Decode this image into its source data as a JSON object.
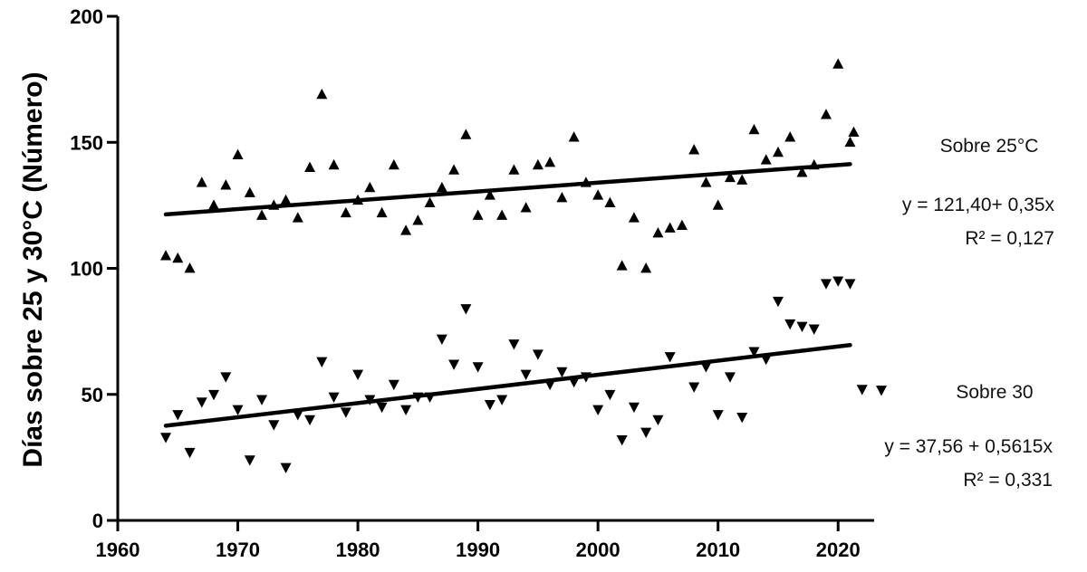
{
  "chart_data": {
    "type": "scatter",
    "title": "",
    "xlabel": "",
    "ylabel": "Días sobre 25 y 30°C (Número)",
    "xlim": [
      1960,
      2023
    ],
    "ylim": [
      0,
      200
    ],
    "xticks": [
      1960,
      1970,
      1980,
      1990,
      2000,
      2010,
      2020
    ],
    "yticks": [
      0,
      50,
      100,
      150,
      200
    ],
    "grid": false,
    "series": [
      {
        "name": "Sobre 25°C",
        "marker": "triangle-up",
        "color": "#000000",
        "x": [
          1964,
          1965,
          1966,
          1967,
          1968,
          1969,
          1970,
          1971,
          1972,
          1973,
          1974,
          1975,
          1976,
          1977,
          1978,
          1979,
          1980,
          1981,
          1982,
          1983,
          1984,
          1985,
          1986,
          1987,
          1988,
          1989,
          1990,
          1991,
          1992,
          1993,
          1994,
          1995,
          1996,
          1997,
          1998,
          1999,
          2000,
          2001,
          2002,
          2003,
          2004,
          2005,
          2006,
          2007,
          2008,
          2009,
          2010,
          2011,
          2012,
          2013,
          2014,
          2015,
          2016,
          2017,
          2018,
          2019,
          2020,
          2021,
          2021.3
        ],
        "y": [
          105,
          104,
          100,
          134,
          125,
          133,
          145,
          130,
          121,
          125,
          127,
          120,
          140,
          169,
          141,
          122,
          127,
          132,
          122,
          141,
          115,
          119,
          126,
          132,
          139,
          153,
          121,
          129,
          121,
          139,
          124,
          141,
          142,
          128,
          152,
          134,
          129,
          126,
          101,
          120,
          100,
          114,
          116,
          117,
          147,
          134,
          125,
          136,
          135,
          155,
          143,
          146,
          152,
          138,
          141,
          161,
          181,
          150,
          154
        ],
        "fit": {
          "intercept": 121.4,
          "slope": 0.35,
          "x0": 1964,
          "x_range": [
            1964,
            2021
          ]
        }
      },
      {
        "name": "Sobre 30",
        "marker": "triangle-down",
        "color": "#000000",
        "x": [
          1964,
          1965,
          1966,
          1967,
          1968,
          1969,
          1970,
          1971,
          1972,
          1973,
          1974,
          1975,
          1976,
          1977,
          1978,
          1979,
          1980,
          1981,
          1982,
          1983,
          1984,
          1985,
          1986,
          1987,
          1988,
          1989,
          1990,
          1991,
          1992,
          1993,
          1994,
          1995,
          1996,
          1997,
          1998,
          1999,
          2000,
          2001,
          2002,
          2003,
          2004,
          2005,
          2006,
          2007,
          2008,
          2009,
          2010,
          2011,
          2012,
          2013,
          2014,
          2015,
          2016,
          2017,
          2018,
          2019,
          2020,
          2021,
          2022
        ],
        "y": [
          33,
          42,
          27,
          47,
          50,
          57,
          44,
          24,
          48,
          38,
          21,
          42,
          40,
          63,
          49,
          43,
          58,
          48,
          45,
          54,
          44,
          49,
          49,
          72,
          62,
          84,
          61,
          46,
          48,
          70,
          58,
          66,
          54,
          59,
          55,
          57,
          44,
          50,
          32,
          45,
          35,
          40,
          65,
          null,
          53,
          61,
          42,
          57,
          41,
          67,
          64,
          87,
          78,
          77,
          76,
          94,
          95,
          94,
          52
        ],
        "fit": {
          "intercept": 37.56,
          "slope": 0.5615,
          "x0": 1964,
          "x_range": [
            1964,
            2021
          ]
        }
      }
    ],
    "annotations": {
      "s25_label": "Sobre 25°C",
      "s25_eq": "y = 121,40+ 0,35x",
      "s25_r2": "R² = 0,127",
      "s30_label": "Sobre 30",
      "s30_eq": "y = 37,56 + 0,5615x",
      "s30_r2": "R² = 0,331"
    },
    "legend_placement": "right"
  }
}
